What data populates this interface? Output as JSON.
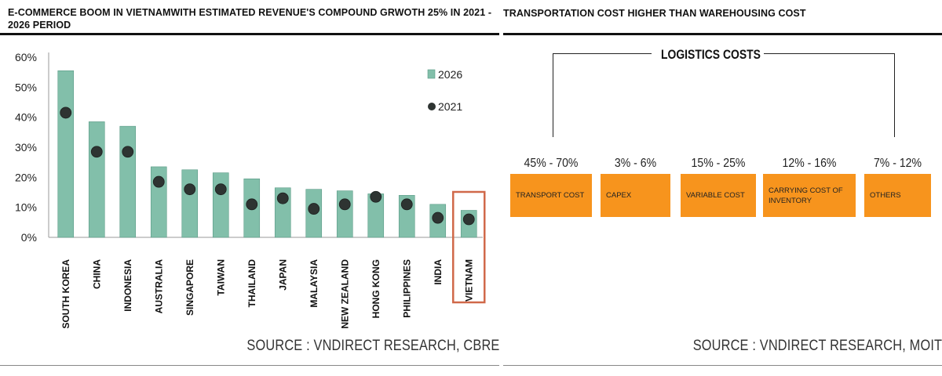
{
  "left": {
    "title": "E-COMMERCE BOOM  IN VIETNAMWITH ESTIMATED REVENUE'S COMPOUND GRWOTH 25% IN 2021 - 2026 PERIOD",
    "source": "SOURCE : VNDIRECT RESEARCH, CBRE"
  },
  "right": {
    "title": "TRANSPORTATION COST HIGHER THAN WAREHOUSING COST",
    "diagram_title": "LOGISTICS COSTS",
    "source": "SOURCE : VNDIRECT RESEARCH, MOIT",
    "cost_items": [
      {
        "range": "45% - 70%",
        "label": "TRANSPORT COST"
      },
      {
        "range": "3% - 6%",
        "label": "CAPEX"
      },
      {
        "range": "15% - 25%",
        "label": "VARIABLE COST"
      },
      {
        "range": "12% - 16%",
        "label": "CARRYING COST OF INVENTORY"
      },
      {
        "range": "7% - 12%",
        "label": "OTHERS"
      }
    ]
  },
  "colors": {
    "bar": "#82bfaa",
    "bar_stroke": "#5a9a86",
    "dot": "#2e3432",
    "highlight": "#d0694a",
    "orange": "#f7941d"
  },
  "chart_data": {
    "type": "bar",
    "categories": [
      "SOUTH KOREA",
      "CHINA",
      "INDONESIA",
      "AUSTRALIA",
      "SINGAPORE",
      "TAIWAN",
      "THAILAND",
      "JAPAN",
      "MALAYSIA",
      "NEW ZEALAND",
      "HONG KONG",
      "PHILIPPINES",
      "INDIA",
      "VIETNAM"
    ],
    "series": [
      {
        "name": "2026",
        "kind": "bar",
        "values": [
          55.5,
          38.5,
          37,
          23.5,
          22.5,
          21.5,
          19.5,
          16.5,
          16,
          15.5,
          14.5,
          14,
          11,
          9
        ]
      },
      {
        "name": "2021",
        "kind": "dot",
        "values": [
          41.5,
          28.5,
          28.5,
          18.5,
          16,
          16,
          11,
          13,
          9.5,
          11,
          13.5,
          11,
          6.5,
          6
        ]
      }
    ],
    "ylim": [
      0,
      60
    ],
    "yticks": [
      "0%",
      "10%",
      "20%",
      "30%",
      "40%",
      "50%",
      "60%"
    ],
    "legend": "top-right",
    "highlight": "VIETNAM",
    "grid": false
  }
}
